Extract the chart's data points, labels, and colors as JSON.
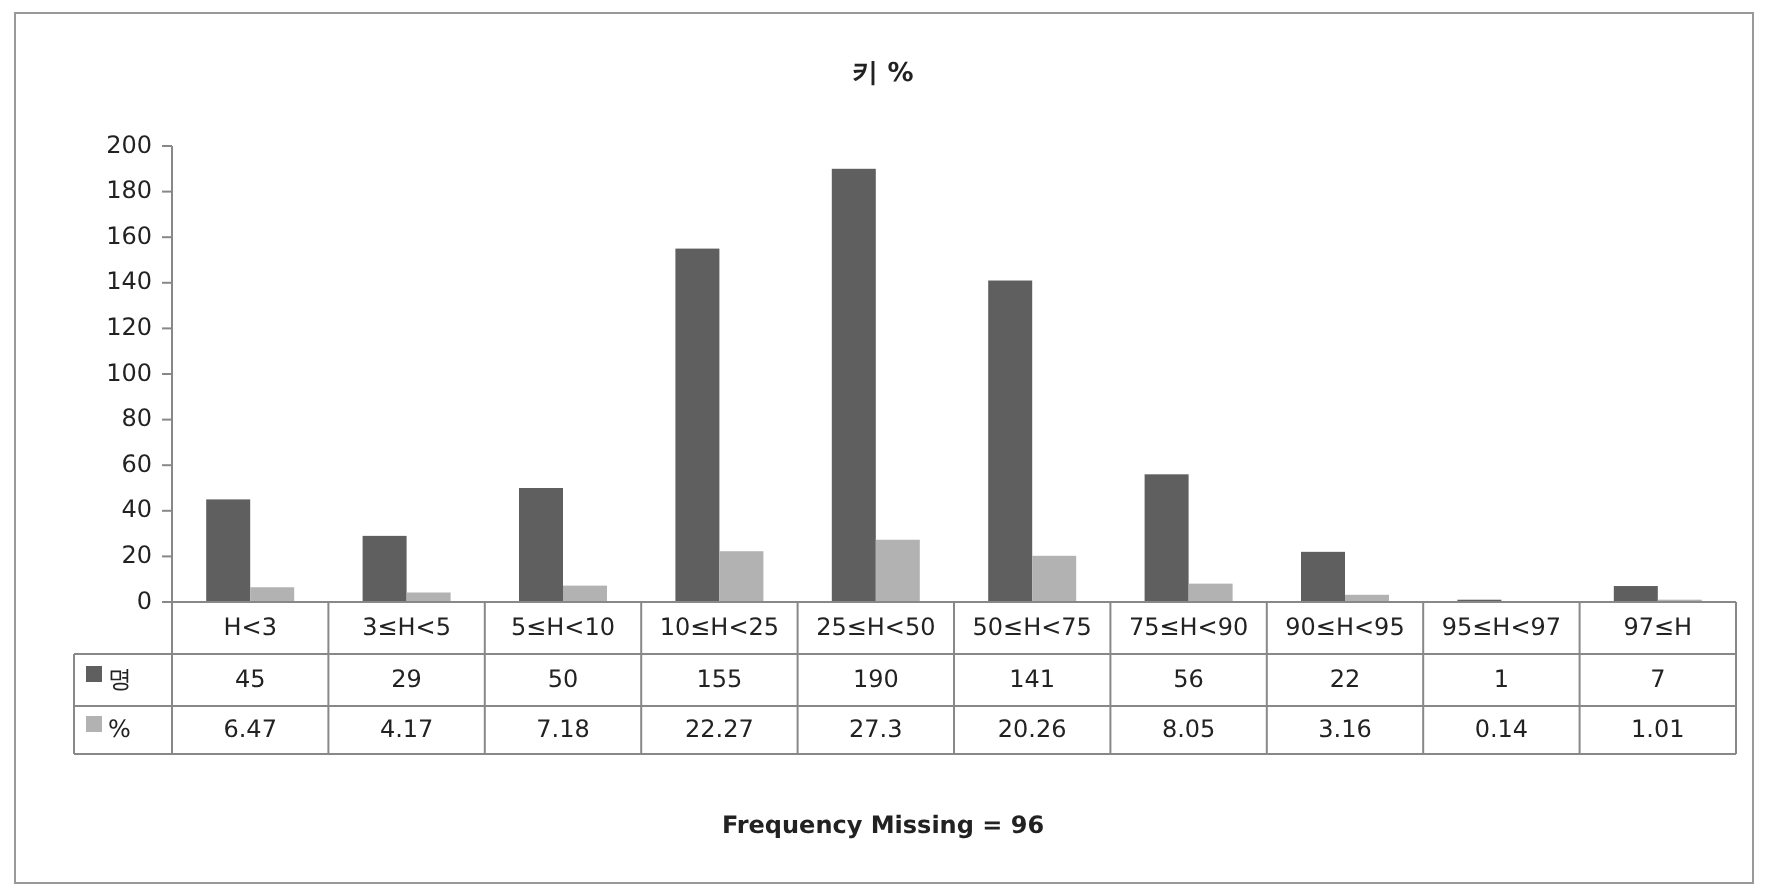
{
  "chart_data": {
    "type": "bar",
    "title": "키 %",
    "categories": [
      "H<3",
      "3≤H<5",
      "5≤H<10",
      "10≤H<25",
      "25≤H<50",
      "50≤H<75",
      "75≤H<90",
      "90≤H<95",
      "95≤H<97",
      "97≤H"
    ],
    "series": [
      {
        "name": "명",
        "color": "#5f5f5f",
        "values": [
          45,
          29,
          50,
          155,
          190,
          141,
          56,
          22,
          1,
          7
        ]
      },
      {
        "name": "%",
        "color": "#b2b2b2",
        "values": [
          6.47,
          4.17,
          7.18,
          22.27,
          27.3,
          20.26,
          8.05,
          3.16,
          0.14,
          1.01
        ]
      }
    ],
    "ylim": [
      0,
      200
    ],
    "yticks": [
      0,
      20,
      40,
      60,
      80,
      100,
      120,
      140,
      160,
      180,
      200
    ],
    "data_labels": true,
    "legend": "bottom",
    "grid": false,
    "annotations": [
      "Frequency Missing = 96"
    ]
  }
}
